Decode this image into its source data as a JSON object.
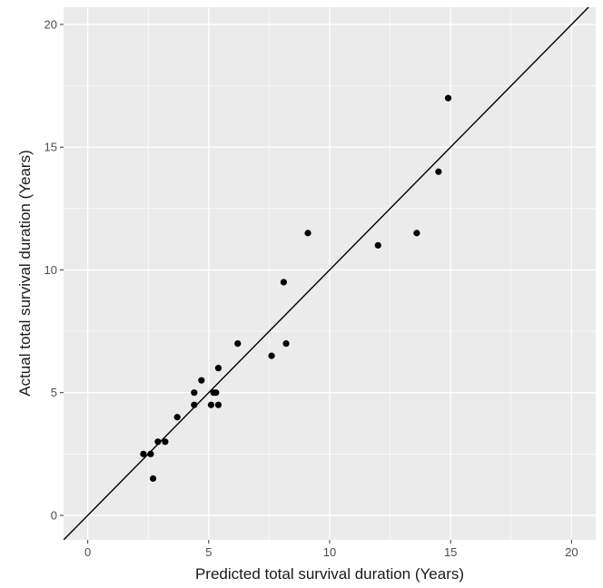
{
  "chart_data": {
    "type": "scatter",
    "title": "",
    "xlabel": "Predicted total survival duration (Years)",
    "ylabel": "Actual total survival duration (Years)",
    "xlim": [
      -1,
      21
    ],
    "ylim": [
      -1,
      20.7
    ],
    "x_ticks": [
      0,
      5,
      10,
      15,
      20
    ],
    "y_ticks": [
      0,
      5,
      10,
      15,
      20
    ],
    "grid": true,
    "panel_background": "#ebebeb",
    "grid_color": "#ffffff",
    "point_color": "#000000",
    "points": [
      {
        "x": 2.3,
        "y": 2.5
      },
      {
        "x": 2.6,
        "y": 2.5
      },
      {
        "x": 2.7,
        "y": 1.5
      },
      {
        "x": 2.9,
        "y": 3.0
      },
      {
        "x": 3.2,
        "y": 3.0
      },
      {
        "x": 3.7,
        "y": 4.0
      },
      {
        "x": 4.4,
        "y": 4.5
      },
      {
        "x": 4.4,
        "y": 5.0
      },
      {
        "x": 4.7,
        "y": 5.5
      },
      {
        "x": 5.1,
        "y": 4.5
      },
      {
        "x": 5.2,
        "y": 5.0
      },
      {
        "x": 5.3,
        "y": 5.0
      },
      {
        "x": 5.4,
        "y": 6.0
      },
      {
        "x": 5.4,
        "y": 4.5
      },
      {
        "x": 6.2,
        "y": 7.0
      },
      {
        "x": 7.6,
        "y": 6.5
      },
      {
        "x": 8.1,
        "y": 9.5
      },
      {
        "x": 8.2,
        "y": 7.0
      },
      {
        "x": 9.1,
        "y": 11.5
      },
      {
        "x": 12.0,
        "y": 11.0
      },
      {
        "x": 13.6,
        "y": 11.5
      },
      {
        "x": 14.5,
        "y": 14.0
      },
      {
        "x": 14.9,
        "y": 17.0
      }
    ],
    "reference_line": {
      "type": "identity",
      "slope": 1,
      "intercept": 0
    }
  }
}
